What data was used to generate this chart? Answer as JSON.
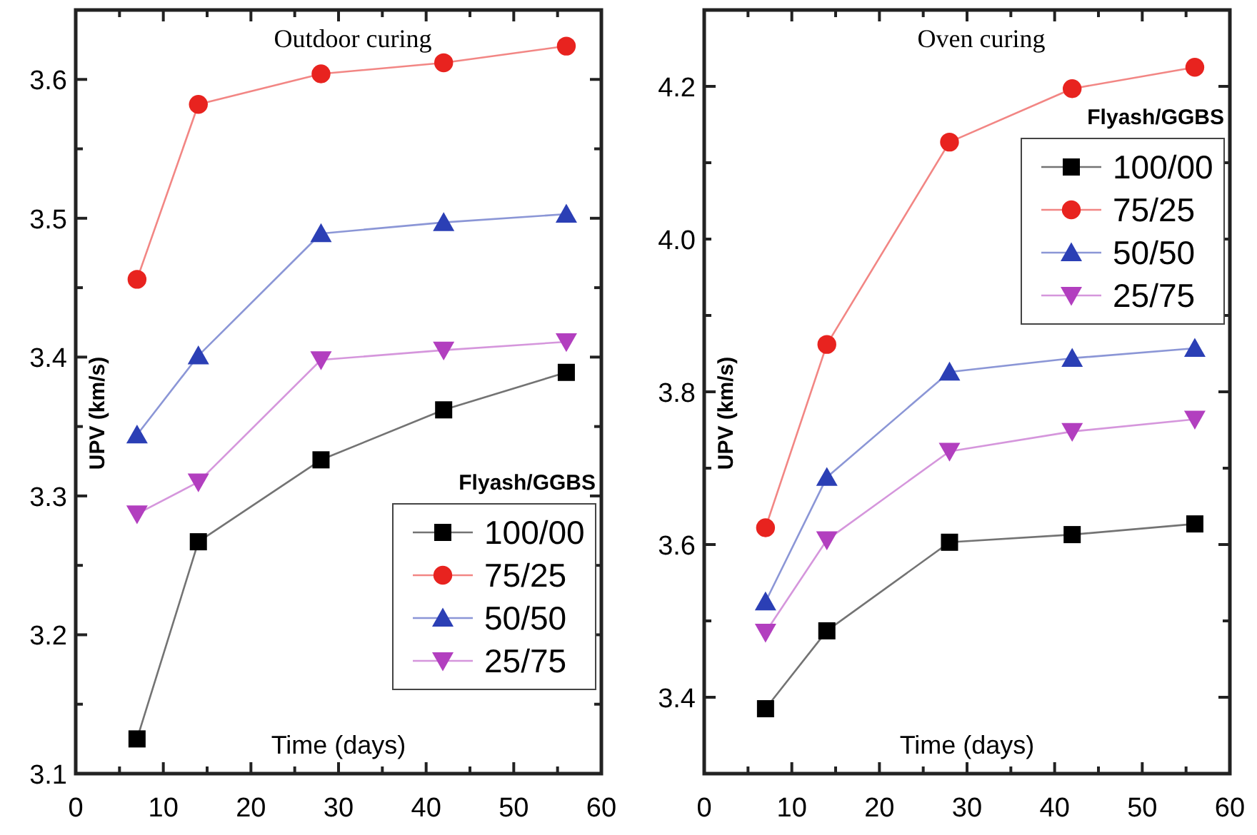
{
  "chart_data": [
    {
      "type": "line",
      "title": "Outdoor curing",
      "xlabel": "Time (days)",
      "ylabel": "UPV (km/s)",
      "legend_title": "Flyash/GGBS",
      "legend": "bottom right",
      "x": [
        7,
        14,
        28,
        42,
        56
      ],
      "xlim": [
        0,
        60
      ],
      "xticks": [
        0,
        {
          "value": 5,
          "label": null
        },
        10,
        {
          "value": 15,
          "label": null
        },
        20,
        {
          "value": 25,
          "label": null
        },
        30,
        {
          "value": 35,
          "label": null
        },
        40,
        {
          "value": 45,
          "label": null
        },
        50,
        {
          "value": 55,
          "label": null
        },
        60
      ],
      "ylim": [
        3.1,
        3.65
      ],
      "yticks": [
        3.1,
        {
          "value": 3.15,
          "label": null
        },
        3.2,
        {
          "value": 3.25,
          "label": null
        },
        3.3,
        {
          "value": 3.35,
          "label": null
        },
        3.4,
        {
          "value": 3.45,
          "label": null
        },
        3.5,
        {
          "value": 3.55,
          "label": null
        },
        3.6
      ],
      "grid": false,
      "line_style": "solid",
      "series": [
        {
          "name": "100/00",
          "color": "#000000",
          "marker": "square",
          "values": [
            3.125,
            3.267,
            3.326,
            3.362,
            3.389
          ]
        },
        {
          "name": "75/25",
          "color": "#e8231f",
          "marker": "circle",
          "values": [
            3.456,
            3.582,
            3.604,
            3.612,
            3.624
          ]
        },
        {
          "name": "50/50",
          "color": "#2b3fb5",
          "marker": "triangle",
          "values": [
            3.344,
            3.401,
            3.489,
            3.497,
            3.503
          ]
        },
        {
          "name": "25/75",
          "color": "#b23fbf",
          "marker": "triangle-down",
          "values": [
            3.287,
            3.31,
            3.398,
            3.405,
            3.411
          ]
        }
      ]
    },
    {
      "type": "line",
      "title": "Oven curing",
      "xlabel": "Time (days)",
      "ylabel": "UPV (km/s)",
      "legend_title": "Flyash/GGBS",
      "legend": "top right",
      "x": [
        7,
        14,
        28,
        42,
        56
      ],
      "xlim": [
        0,
        60
      ],
      "xticks": [
        0,
        {
          "value": 5,
          "label": null
        },
        10,
        {
          "value": 15,
          "label": null
        },
        20,
        {
          "value": 25,
          "label": null
        },
        30,
        {
          "value": 35,
          "label": null
        },
        40,
        {
          "value": 45,
          "label": null
        },
        50,
        {
          "value": 55,
          "label": null
        },
        60
      ],
      "ylim": [
        3.3,
        4.3
      ],
      "yticks": [
        {
          "value": 3.3,
          "label": null
        },
        3.4,
        {
          "value": 3.5,
          "label": null
        },
        3.6,
        {
          "value": 3.7,
          "label": null
        },
        3.8,
        {
          "value": 3.9,
          "label": null
        },
        {
          "value": 4,
          "label": "4.0"
        },
        {
          "value": 4.1,
          "label": null
        },
        4.2,
        {
          "value": 4.3,
          "label": null
        }
      ],
      "grid": false,
      "line_style": "solid",
      "series": [
        {
          "name": "100/00",
          "color": "#000000",
          "marker": "square",
          "values": [
            3.385,
            3.487,
            3.603,
            3.613,
            3.627
          ]
        },
        {
          "name": "75/25",
          "color": "#e8231f",
          "marker": "circle",
          "values": [
            3.622,
            3.862,
            4.127,
            4.197,
            4.225
          ]
        },
        {
          "name": "50/50",
          "color": "#2b3fb5",
          "marker": "triangle",
          "values": [
            3.525,
            3.688,
            3.826,
            3.844,
            3.857
          ]
        },
        {
          "name": "25/75",
          "color": "#b23fbf",
          "marker": "triangle-down",
          "values": [
            3.485,
            3.606,
            3.722,
            3.748,
            3.764
          ]
        }
      ]
    }
  ]
}
